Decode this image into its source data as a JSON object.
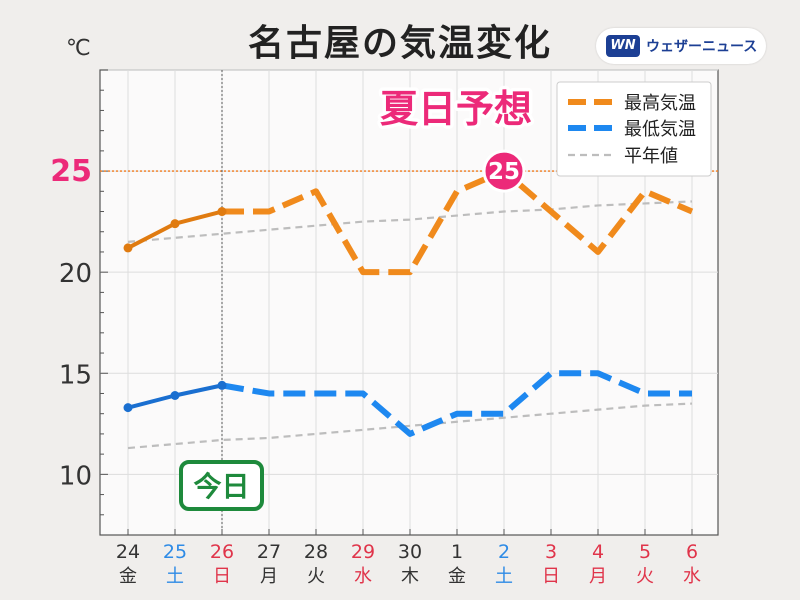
{
  "title": "名古屋の気温変化",
  "logo": {
    "mark": "WN",
    "text": "ウェザーニュース",
    "icon": "weathernews-logo-icon"
  },
  "unit": "℃",
  "colors": {
    "high": "#f08a1c",
    "high_actual": "#e07b10",
    "low": "#1e88f0",
    "low_actual": "#1a6fd0",
    "normal": "#bdbdbd",
    "accent": "#ec2a79",
    "today": "#1e8a3c"
  },
  "chart_data": {
    "type": "line",
    "title": "名古屋の気温変化",
    "ylim": [
      7,
      30
    ],
    "yticks": [
      10,
      15,
      20,
      25
    ],
    "grid": true,
    "legend_position": "top-right",
    "categories": [
      {
        "date": "24",
        "weekday": "金",
        "color": "#333333"
      },
      {
        "date": "25",
        "weekday": "土",
        "color": "#2e8be6"
      },
      {
        "date": "26",
        "weekday": "日",
        "color": "#e0344a"
      },
      {
        "date": "27",
        "weekday": "月",
        "color": "#333333"
      },
      {
        "date": "28",
        "weekday": "火",
        "color": "#333333"
      },
      {
        "date": "29",
        "weekday": "水",
        "color": "#e0344a"
      },
      {
        "date": "30",
        "weekday": "木",
        "color": "#333333"
      },
      {
        "date": "1",
        "weekday": "金",
        "color": "#333333"
      },
      {
        "date": "2",
        "weekday": "土",
        "color": "#2e8be6"
      },
      {
        "date": "3",
        "weekday": "日",
        "color": "#e0344a"
      },
      {
        "date": "4",
        "weekday": "月",
        "color": "#e0344a"
      },
      {
        "date": "5",
        "weekday": "火",
        "color": "#e0344a"
      },
      {
        "date": "6",
        "weekday": "水",
        "color": "#e0344a"
      }
    ],
    "today_index": 2,
    "today_label": "今日",
    "series": [
      {
        "name": "最高気温",
        "values": [
          21.2,
          22.4,
          23,
          23,
          24,
          20,
          20,
          24,
          25,
          23,
          21,
          24,
          23
        ]
      },
      {
        "name": "最低気温",
        "values": [
          13.3,
          13.9,
          14.4,
          14,
          14,
          14,
          12,
          13,
          13,
          15,
          15,
          14,
          14
        ]
      },
      {
        "name": "平年値",
        "values": [
          21.5,
          21.7,
          21.9,
          22.1,
          22.3,
          22.5,
          22.6,
          22.8,
          23.0,
          23.1,
          23.3,
          23.4,
          23.5
        ]
      },
      {
        "name": "平年値",
        "values": [
          11.3,
          11.5,
          11.7,
          11.8,
          12.0,
          12.2,
          12.4,
          12.6,
          12.8,
          13.0,
          13.2,
          13.4,
          13.5
        ]
      }
    ],
    "threshold": {
      "value": 25,
      "label": "25"
    },
    "badge": {
      "index": 8,
      "value": "25"
    },
    "annotation": "夏日予想"
  }
}
